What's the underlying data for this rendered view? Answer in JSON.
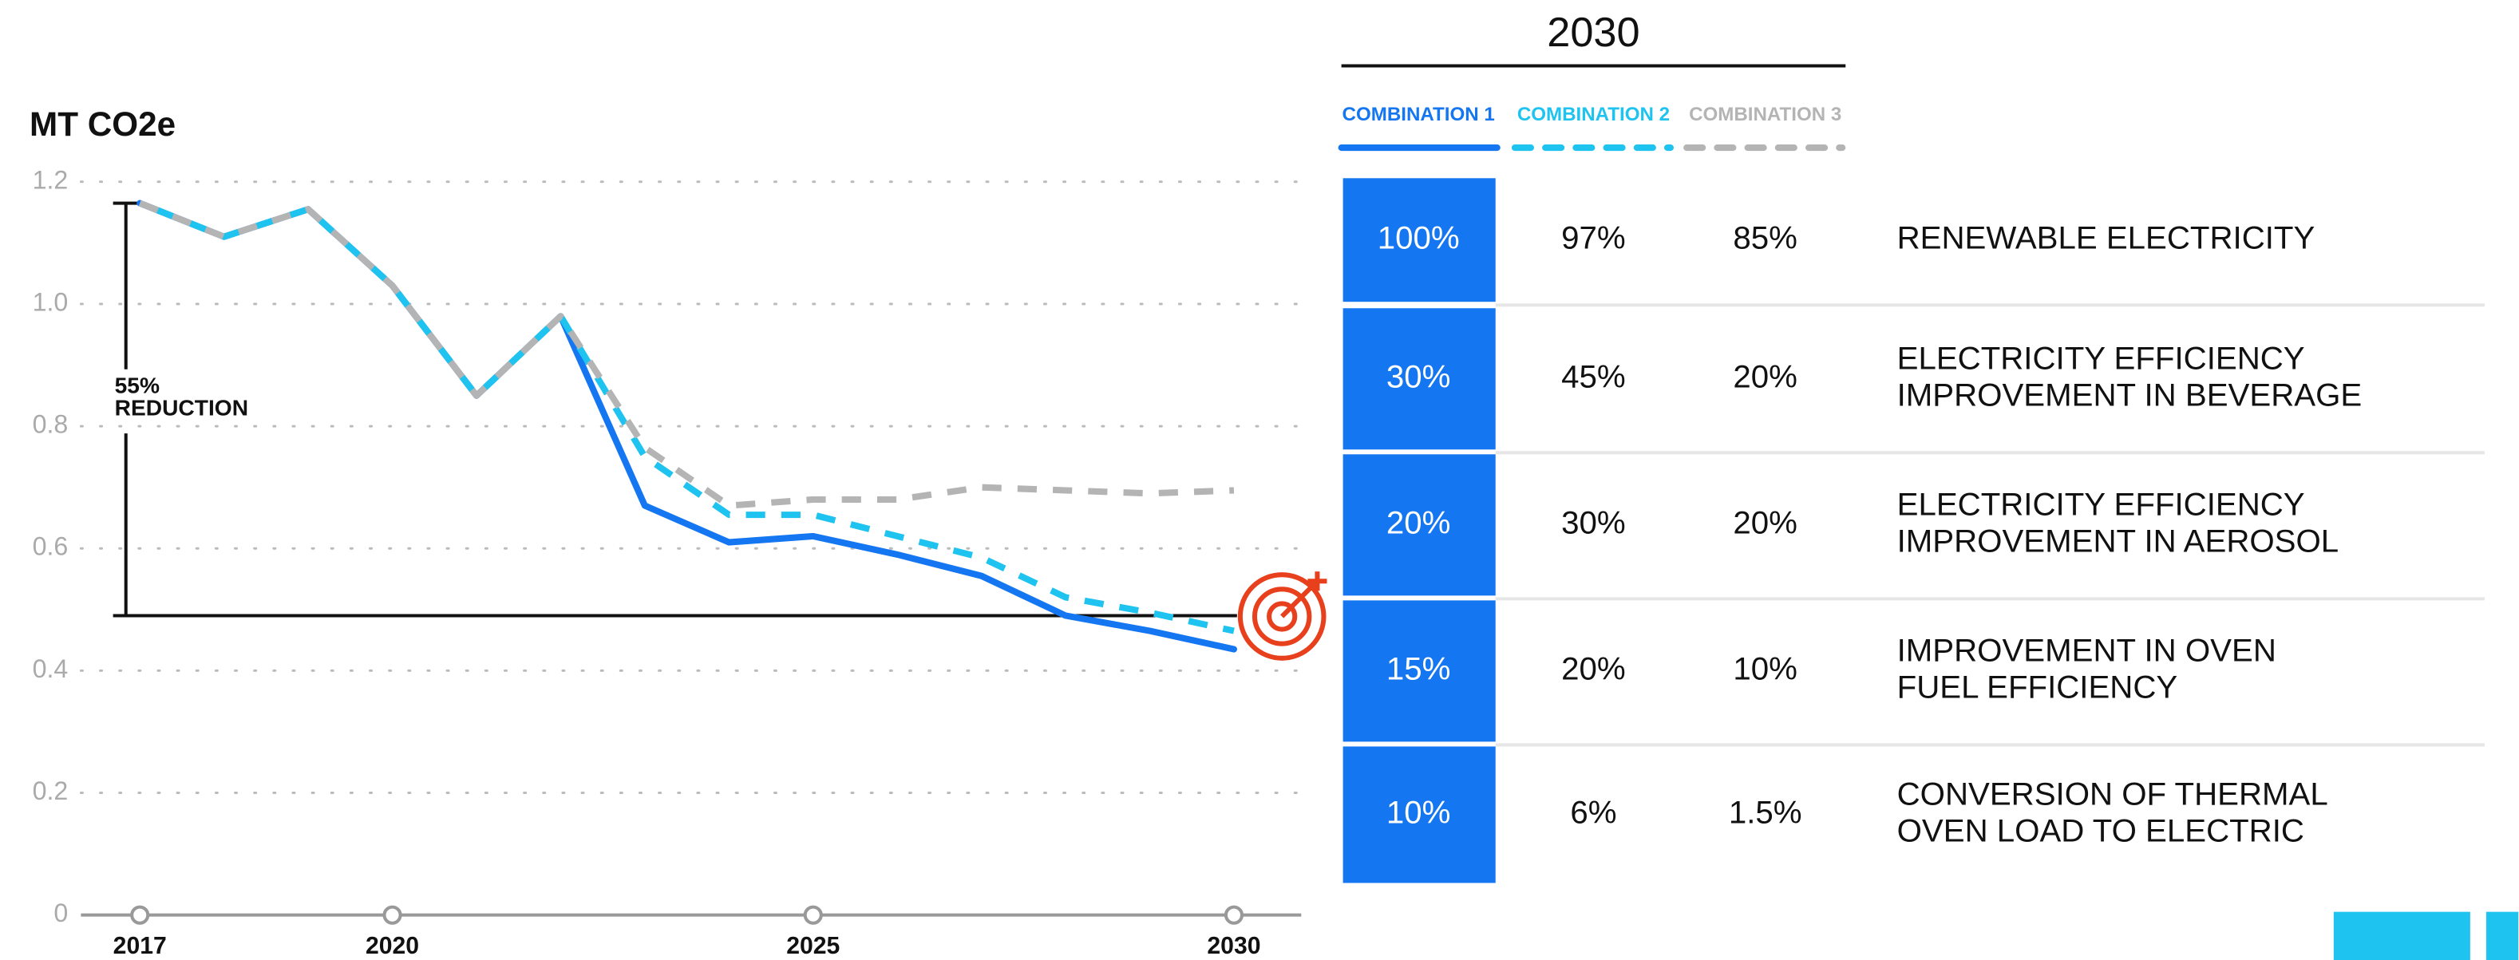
{
  "chart_data": {
    "type": "line",
    "title": "MT CO2e",
    "x": [
      2017,
      2018,
      2019,
      2020,
      2021,
      2022,
      2023,
      2024,
      2025,
      2026,
      2027,
      2028,
      2029,
      2030
    ],
    "series": [
      {
        "name": "COMBINATION 1",
        "color": "#1476f0",
        "dash": false,
        "values": [
          1.165,
          1.11,
          1.155,
          1.03,
          0.85,
          0.98,
          0.67,
          0.61,
          0.62,
          0.59,
          0.555,
          0.49,
          0.465,
          0.435
        ]
      },
      {
        "name": "COMBINATION 2",
        "color": "#1ec3f0",
        "dash": true,
        "values": [
          1.165,
          1.11,
          1.155,
          1.03,
          0.85,
          0.98,
          0.75,
          0.655,
          0.655,
          0.62,
          0.585,
          0.52,
          0.495,
          0.465
        ]
      },
      {
        "name": "COMBINATION 3",
        "color": "#b4b4b4",
        "dash": true,
        "values": [
          1.165,
          1.11,
          1.155,
          1.03,
          0.85,
          0.98,
          0.765,
          0.67,
          0.68,
          0.68,
          0.7,
          0.695,
          0.69,
          0.695
        ]
      }
    ],
    "target": 0.49,
    "annotation": [
      "55%",
      "REDUCTION"
    ],
    "xlim": [
      2016.3,
      2030.8
    ],
    "xticks": [
      2017,
      2020,
      2025,
      2030
    ],
    "ylim": [
      0,
      1.24
    ],
    "yticks": [
      0,
      0.2,
      0.4,
      0.6,
      0.8,
      {
        "value": 1,
        "label": "1.0"
      },
      1.2
    ],
    "grid": true
  },
  "table": {
    "title": "2030",
    "rows": [
      {
        "values": [
          "100%",
          "97%",
          "85%"
        ],
        "label": [
          "RENEWABLE ELECTRICITY"
        ]
      },
      {
        "values": [
          "30%",
          "45%",
          "20%"
        ],
        "label": [
          "ELECTRICITY EFFICIENCY",
          "IMPROVEMENT IN BEVERAGE"
        ]
      },
      {
        "values": [
          "20%",
          "30%",
          "20%"
        ],
        "label": [
          "ELECTRICITY EFFICIENCY",
          "IMPROVEMENT IN AEROSOL"
        ]
      },
      {
        "values": [
          "15%",
          "20%",
          "10%"
        ],
        "label": [
          "IMPROVEMENT IN OVEN",
          "FUEL EFFICIENCY"
        ]
      },
      {
        "values": [
          "10%",
          "6%",
          "1.5%"
        ],
        "label": [
          "CONVERSION OF THERMAL",
          "OVEN LOAD TO ELECTRIC"
        ]
      }
    ]
  }
}
